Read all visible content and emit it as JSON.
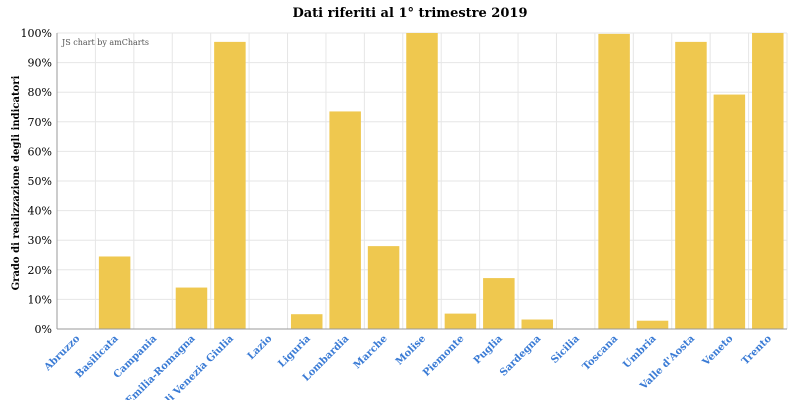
{
  "chart_data": {
    "type": "bar",
    "title": "Dati riferiti al 1° trimestre 2019",
    "xlabel": "",
    "ylabel": "Grado di realizzazione degli indicatori",
    "categories": [
      "Abruzzo",
      "Basilicata",
      "Campania",
      "Emilia-Romagna",
      "Friuli Venezia Giulia",
      "Lazio",
      "Liguria",
      "Lombardia",
      "Marche",
      "Molise",
      "Piemonte",
      "Puglia",
      "Sardegna",
      "Sicilia",
      "Toscana",
      "Umbria",
      "Valle d'Aosta",
      "Veneto",
      "Trento"
    ],
    "values": [
      0,
      24.5,
      0,
      14,
      97,
      0,
      5,
      73.5,
      28,
      100,
      5.2,
      17.2,
      3.2,
      0,
      99.7,
      2.8,
      97,
      79.2,
      100
    ],
    "ylim": [
      0,
      100
    ],
    "yticks": [
      "0%",
      "10%",
      "20%",
      "30%",
      "40%",
      "50%",
      "60%",
      "70%",
      "80%",
      "90%",
      "100%"
    ],
    "grid": true,
    "bar_color": "#efc84f",
    "tick_label_color": "#3a7bd5"
  },
  "credit": "JS chart by amCharts"
}
